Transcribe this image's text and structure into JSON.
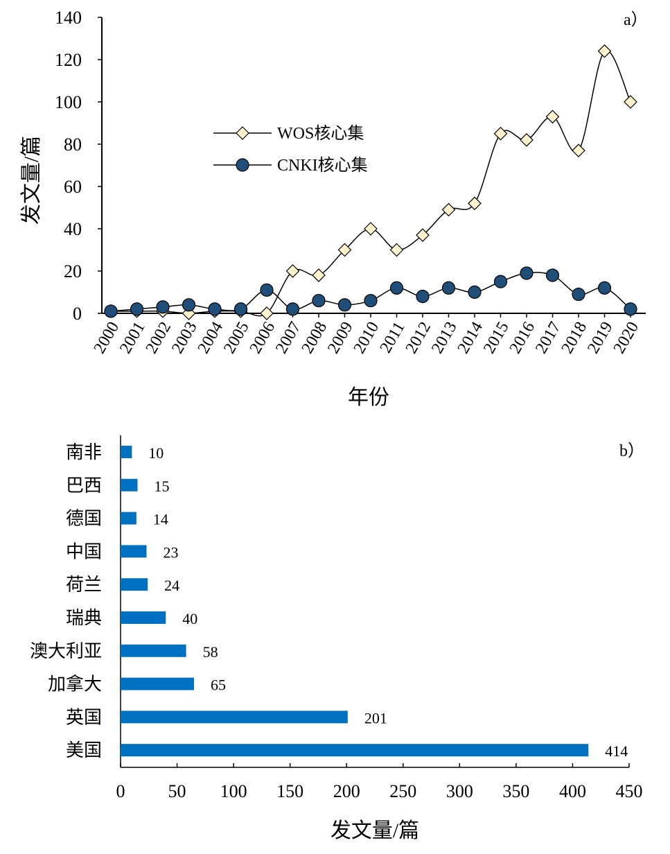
{
  "colors": {
    "wos_fill": "#FFF2CC",
    "cnki_fill": "#1F4E79",
    "bar_fill": "#0070C0",
    "line": "#000000"
  },
  "chart_data": [
    {
      "type": "line",
      "panel_label": "a）",
      "xlabel": "年份",
      "ylabel": "发文量/篇",
      "x": [
        "2000",
        "2001",
        "2002",
        "2003",
        "2004",
        "2005",
        "2006",
        "2007",
        "2008",
        "2009",
        "2010",
        "2011",
        "2012",
        "2013",
        "2014",
        "2015",
        "2016",
        "2017",
        "2018",
        "2019",
        "2020"
      ],
      "ylim": [
        0,
        140
      ],
      "yticks": [
        "0",
        "20",
        "40",
        "60",
        "80",
        "100",
        "120",
        "140"
      ],
      "legend_position": "upper-left-center",
      "series": [
        {
          "name": "WOS核心集",
          "marker": "diamond",
          "values": [
            1,
            1,
            1,
            0,
            1,
            1,
            0,
            20,
            18,
            30,
            40,
            30,
            37,
            49,
            52,
            85,
            82,
            93,
            77,
            124,
            100
          ]
        },
        {
          "name": "CNKI核心集",
          "marker": "circle",
          "values": [
            1,
            2,
            3,
            4,
            2,
            2,
            11,
            2,
            6,
            4,
            6,
            12,
            8,
            12,
            10,
            15,
            19,
            18,
            9,
            12,
            2
          ]
        }
      ]
    },
    {
      "type": "bar",
      "orientation": "horizontal",
      "panel_label": "b）",
      "xlabel": "发文量/篇",
      "categories": [
        "南非",
        "巴西",
        "德国",
        "中国",
        "荷兰",
        "瑞典",
        "澳大利亚",
        "加拿大",
        "英国",
        "美国"
      ],
      "values": [
        10,
        15,
        14,
        23,
        24,
        40,
        58,
        65,
        201,
        414
      ],
      "value_labels": [
        "10",
        "15",
        "14",
        "23",
        "24",
        "40",
        "58",
        "65",
        "201",
        "414"
      ],
      "xlim": [
        0,
        450
      ],
      "xticks": [
        "0",
        "50",
        "100",
        "150",
        "200",
        "250",
        "300",
        "350",
        "400",
        "450"
      ]
    }
  ]
}
